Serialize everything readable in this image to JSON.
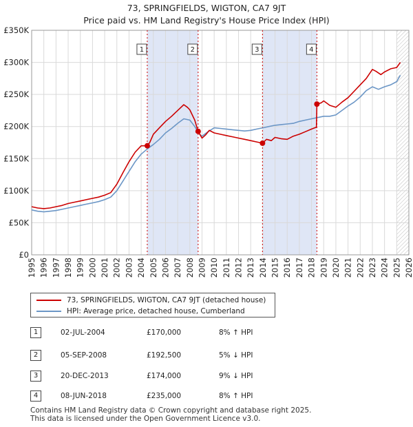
{
  "title_line1": "73, SPRINGFIELDS, WIGTON, CA7 9JT",
  "title_line2": "Price paid vs. HM Land Registry's House Price Index (HPI)",
  "colors": {
    "property": "#cc0000",
    "hpi": "#6b96c6",
    "shade": "#dfe6f6",
    "marker": "#cc0000",
    "grid": "#d9d9d9"
  },
  "chart_data": {
    "type": "line",
    "title": "73, SPRINGFIELDS, WIGTON, CA7 9JT",
    "subtitle": "Price paid vs. HM Land Registry's House Price Index (HPI)",
    "xlabel": "",
    "ylabel": "",
    "xlim": [
      1995,
      2026
    ],
    "ylim": [
      0,
      350000
    ],
    "yticks": [
      0,
      50000,
      100000,
      150000,
      200000,
      250000,
      300000,
      350000
    ],
    "ytick_labels": [
      "£0",
      "£50K",
      "£100K",
      "£150K",
      "£200K",
      "£250K",
      "£300K",
      "£350K"
    ],
    "xticks": [
      1995,
      1996,
      1997,
      1998,
      1999,
      2000,
      2001,
      2002,
      2003,
      2004,
      2005,
      2006,
      2007,
      2008,
      2009,
      2010,
      2011,
      2012,
      2013,
      2014,
      2015,
      2016,
      2017,
      2018,
      2019,
      2020,
      2021,
      2022,
      2023,
      2024,
      2025,
      2026
    ],
    "xtick_labels": [
      "1995",
      "1996",
      "1997",
      "1998",
      "1999",
      "2000",
      "2001",
      "2002",
      "2003",
      "2004",
      "2005",
      "2006",
      "2007",
      "2008",
      "2009",
      "2010",
      "2011",
      "2012",
      "2013",
      "2014",
      "2015",
      "2016",
      "2017",
      "2018",
      "2019",
      "2020",
      "2021",
      "2022",
      "2023",
      "2024",
      "2025",
      "2026"
    ],
    "grid": true,
    "hatched_after": 2025.0,
    "shaded_spans": [
      [
        2004.5,
        2008.68
      ],
      [
        2013.97,
        2018.44
      ]
    ],
    "series": [
      {
        "name": "73, SPRINGFIELDS, WIGTON, CA7 9JT (detached house)",
        "x": [
          1995,
          1995.5,
          1996,
          1996.5,
          1997,
          1997.5,
          1998,
          1998.5,
          1999,
          1999.5,
          2000,
          2000.5,
          2001,
          2001.5,
          2002,
          2002.5,
          2003,
          2003.5,
          2004,
          2004.5,
          2004.7,
          2005,
          2005.5,
          2006,
          2006.5,
          2007,
          2007.5,
          2007.8,
          2008,
          2008.4,
          2008.68,
          2009,
          2009.3,
          2009.6,
          2010,
          2010.5,
          2011,
          2011.5,
          2012,
          2012.5,
          2013,
          2013.5,
          2013.97,
          2014.3,
          2014.7,
          2015,
          2015.5,
          2016,
          2016.5,
          2017,
          2017.5,
          2018,
          2018.4,
          2018.44,
          2018.8,
          2019,
          2019.5,
          2020,
          2020.5,
          2021,
          2021.5,
          2022,
          2022.5,
          2023,
          2023.3,
          2023.7,
          2024,
          2024.5,
          2025,
          2025.3
        ],
        "values": [
          75000,
          73000,
          72000,
          73000,
          75000,
          77000,
          80000,
          82000,
          84000,
          86000,
          88000,
          90000,
          93000,
          97000,
          110000,
          128000,
          145000,
          160000,
          170000,
          170000,
          175000,
          188000,
          198000,
          208000,
          216000,
          225000,
          234000,
          230000,
          226000,
          210000,
          192500,
          182000,
          187000,
          194000,
          190000,
          188000,
          186000,
          184000,
          182000,
          180000,
          178000,
          176000,
          174000,
          180000,
          178000,
          183000,
          181000,
          180000,
          185000,
          188000,
          192000,
          196000,
          199000,
          235000,
          237000,
          240000,
          233000,
          230000,
          238000,
          245000,
          255000,
          265000,
          275000,
          289000,
          286000,
          281000,
          285000,
          290000,
          292000,
          300000
        ]
      },
      {
        "name": "HPI: Average price, detached house, Cumberland",
        "x": [
          1995,
          1995.5,
          1996,
          1996.5,
          1997,
          1997.5,
          1998,
          1998.5,
          1999,
          1999.5,
          2000,
          2000.5,
          2001,
          2001.5,
          2002,
          2002.5,
          2003,
          2003.5,
          2004,
          2004.5,
          2005,
          2005.5,
          2006,
          2006.5,
          2007,
          2007.5,
          2008,
          2008.4,
          2008.8,
          2009,
          2009.5,
          2010,
          2010.5,
          2011,
          2011.5,
          2012,
          2012.5,
          2013,
          2013.5,
          2014,
          2014.5,
          2015,
          2015.5,
          2016,
          2016.5,
          2017,
          2017.5,
          2018,
          2018.5,
          2019,
          2019.5,
          2020,
          2020.5,
          2021,
          2021.5,
          2022,
          2022.5,
          2023,
          2023.5,
          2024,
          2024.5,
          2025,
          2025.3
        ],
        "values": [
          70000,
          68000,
          67000,
          68000,
          69000,
          71000,
          73000,
          75000,
          77000,
          79000,
          81000,
          83000,
          86000,
          90000,
          100000,
          115000,
          130000,
          145000,
          157000,
          165000,
          172000,
          180000,
          190000,
          197000,
          205000,
          212000,
          210000,
          200000,
          188000,
          185000,
          192000,
          198000,
          197000,
          196000,
          195000,
          194000,
          193000,
          194000,
          196000,
          198000,
          200000,
          202000,
          203000,
          204000,
          205000,
          208000,
          210000,
          212000,
          214000,
          216000,
          216000,
          218000,
          225000,
          232000,
          238000,
          246000,
          256000,
          262000,
          258000,
          262000,
          265000,
          270000,
          280000
        ]
      }
    ],
    "transactions": [
      {
        "id": "1",
        "x": 2004.5,
        "value": 170000
      },
      {
        "id": "2",
        "x": 2008.68,
        "value": 192500
      },
      {
        "id": "3",
        "x": 2013.97,
        "value": 174000
      },
      {
        "id": "4",
        "x": 2018.44,
        "value": 235000
      }
    ],
    "legend_position": "below"
  },
  "legend": {
    "property_label": "73, SPRINGFIELDS, WIGTON, CA7 9JT (detached house)",
    "hpi_label": "HPI: Average price, detached house, Cumberland"
  },
  "transactions_table": [
    {
      "num": "1",
      "date": "02-JUL-2004",
      "price": "£170,000",
      "hpi": "8% ↑ HPI"
    },
    {
      "num": "2",
      "date": "05-SEP-2008",
      "price": "£192,500",
      "hpi": "5% ↓ HPI"
    },
    {
      "num": "3",
      "date": "20-DEC-2013",
      "price": "£174,000",
      "hpi": "9% ↓ HPI"
    },
    {
      "num": "4",
      "date": "08-JUN-2018",
      "price": "£235,000",
      "hpi": "8% ↑ HPI"
    }
  ],
  "footer": {
    "line1": "Contains HM Land Registry data © Crown copyright and database right 2025.",
    "line2": "This data is licensed under the Open Government Licence v3.0."
  }
}
